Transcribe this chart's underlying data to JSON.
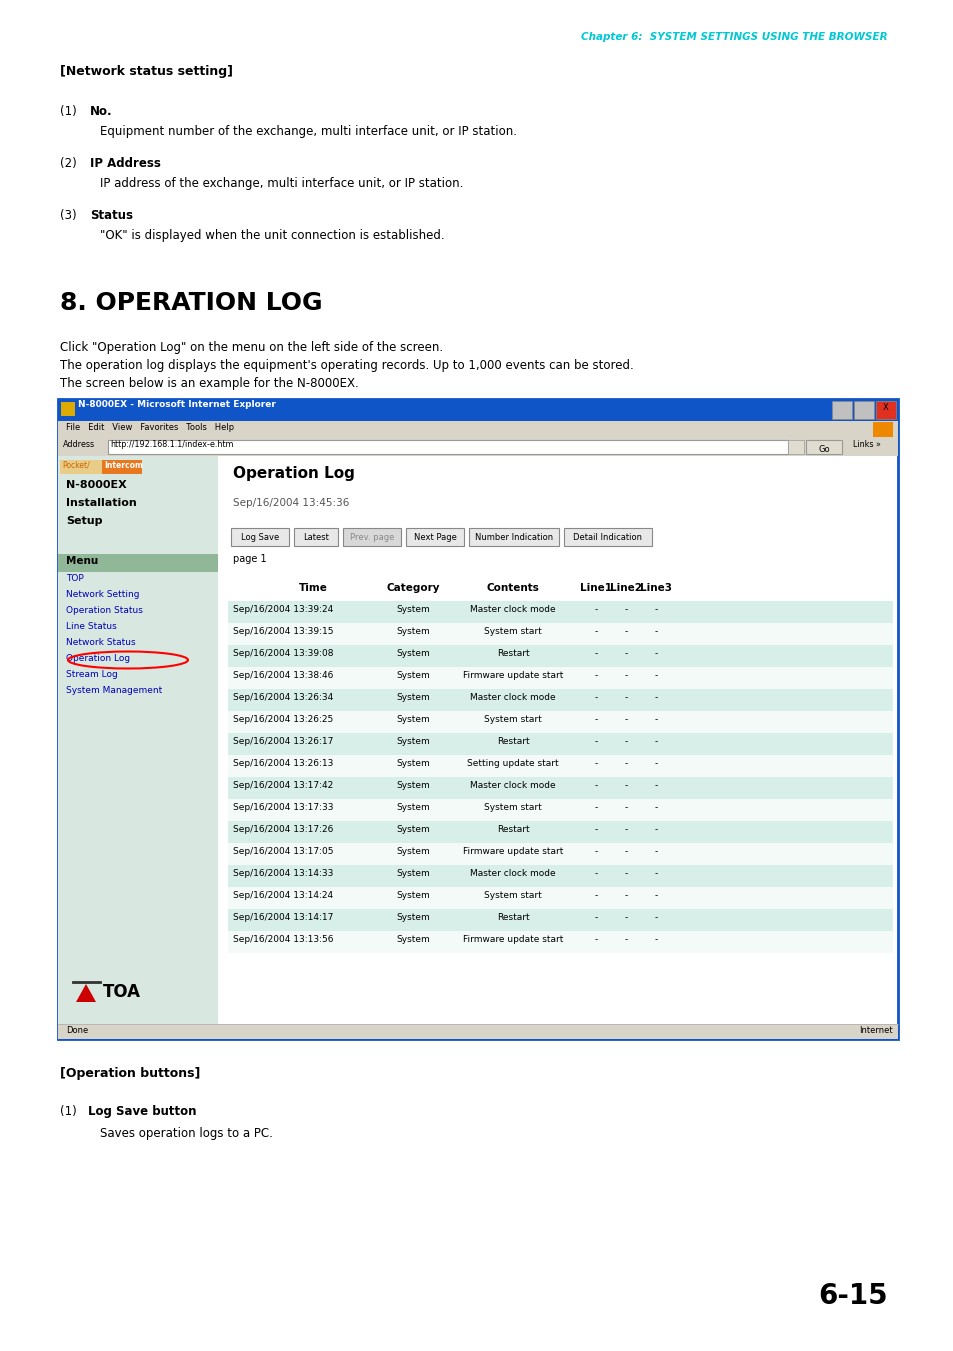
{
  "page_width": 9.54,
  "page_height": 13.51,
  "bg_color": "#ffffff",
  "header_text": "Chapter 6:  SYSTEM SETTINGS USING THE BROWSER",
  "header_color": "#00c8d4",
  "section_title": "[Network status setting]",
  "items": [
    {
      "num": "(1)",
      "label": "No.",
      "body": "Equipment number of the exchange, multi interface unit, or IP station."
    },
    {
      "num": "(2)",
      "label": "IP Address",
      "body": "IP address of the exchange, multi interface unit, or IP station."
    },
    {
      "num": "(3)",
      "label": "Status",
      "body": "\"OK\" is displayed when the unit connection is established."
    }
  ],
  "section2_title": "8. OPERATION LOG",
  "para1": "Click \"Operation Log\" on the menu on the left side of the screen.",
  "para2": "The operation log displays the equipment's operating records. Up to 1,000 events can be stored.",
  "para3": "The screen below is an example for the N-8000EX.",
  "browser_title": "N-8000EX - Microsoft Internet Explorer",
  "address_url": "http://192.168.1.1/index-e.htm",
  "nav_left_title1": "N-8000EX",
  "nav_left_title2": "Installation",
  "nav_left_title3": "Setup",
  "menu_label": "Menu",
  "menu_items": [
    "TOP",
    "Network Setting",
    "Operation Status",
    "Line Status",
    "Network Status",
    "Operation Log",
    "Stream Log",
    "System Management"
  ],
  "operation_log_title": "Operation Log",
  "datetime_shown": "Sep/16/2004 13:45:36",
  "buttons": [
    "Log Save",
    "Latest",
    "Prev. page",
    "Next Page",
    "Number Indication",
    "Detail Indication"
  ],
  "page_indicator": "page 1",
  "table_headers": [
    "Time",
    "Category",
    "Contents",
    "Line1",
    "Line2",
    "Line3"
  ],
  "table_rows": [
    [
      "Sep/16/2004 13:39:24",
      "System",
      "Master clock mode",
      "-",
      "-",
      "-"
    ],
    [
      "Sep/16/2004 13:39:15",
      "System",
      "System start",
      "-",
      "-",
      "-"
    ],
    [
      "Sep/16/2004 13:39:08",
      "System",
      "Restart",
      "-",
      "-",
      "-"
    ],
    [
      "Sep/16/2004 13:38:46",
      "System",
      "Firmware update start",
      "-",
      "-",
      "-"
    ],
    [
      "Sep/16/2004 13:26:34",
      "System",
      "Master clock mode",
      "-",
      "-",
      "-"
    ],
    [
      "Sep/16/2004 13:26:25",
      "System",
      "System start",
      "-",
      "-",
      "-"
    ],
    [
      "Sep/16/2004 13:26:17",
      "System",
      "Restart",
      "-",
      "-",
      "-"
    ],
    [
      "Sep/16/2004 13:26:13",
      "System",
      "Setting update start",
      "-",
      "-",
      "-"
    ],
    [
      "Sep/16/2004 13:17:42",
      "System",
      "Master clock mode",
      "-",
      "-",
      "-"
    ],
    [
      "Sep/16/2004 13:17:33",
      "System",
      "System start",
      "-",
      "-",
      "-"
    ],
    [
      "Sep/16/2004 13:17:26",
      "System",
      "Restart",
      "-",
      "-",
      "-"
    ],
    [
      "Sep/16/2004 13:17:05",
      "System",
      "Firmware update start",
      "-",
      "-",
      "-"
    ],
    [
      "Sep/16/2004 13:14:33",
      "System",
      "Master clock mode",
      "-",
      "-",
      "-"
    ],
    [
      "Sep/16/2004 13:14:24",
      "System",
      "System start",
      "-",
      "-",
      "-"
    ],
    [
      "Sep/16/2004 13:14:17",
      "System",
      "Restart",
      "-",
      "-",
      "-"
    ],
    [
      "Sep/16/2004 13:13:56",
      "System",
      "Firmware update start",
      "-",
      "-",
      "-"
    ]
  ],
  "row_color_even": "#d8eee8",
  "row_color_odd": "#f4faf8",
  "bottom_section_title": "[Operation buttons]",
  "bottom_item_num": "(1)",
  "bottom_item_label": "Log Save button",
  "bottom_item_body": "Saves operation logs to a PC.",
  "page_num": "6-15",
  "browser_titlebar_color": "#1055c8",
  "browser_menubar_color": "#d8d4c8",
  "nav_panel_color": "#d8e8e0",
  "menu_header_color": "#90b898",
  "table_row_bg_a": "#d8eee8",
  "table_row_bg_b": "#f4faf8"
}
